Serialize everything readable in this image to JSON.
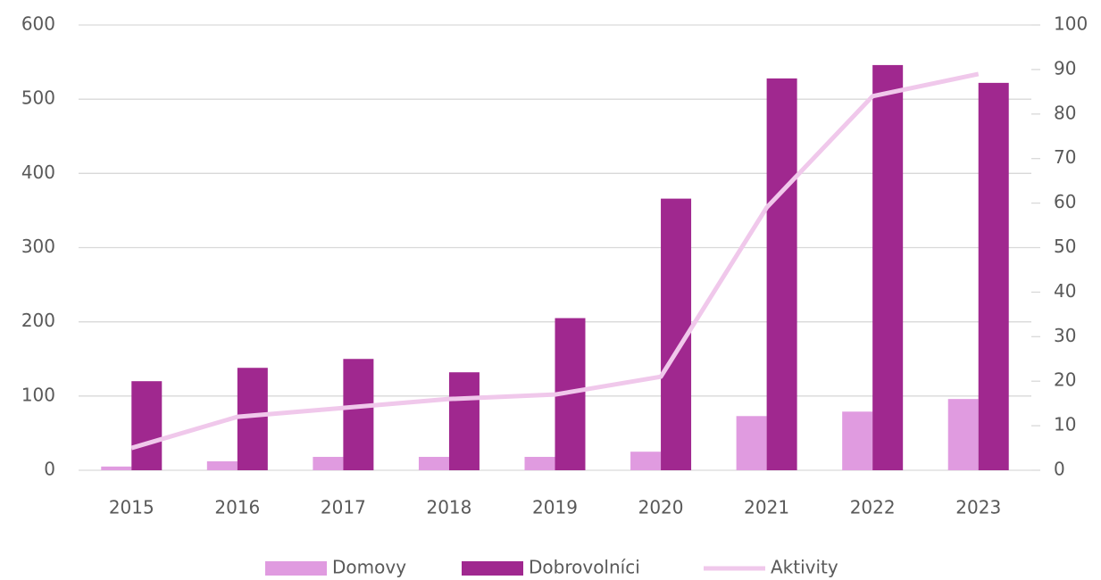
{
  "chart_data": {
    "type": "bar_line",
    "categories": [
      "2015",
      "2016",
      "2017",
      "2018",
      "2019",
      "2020",
      "2021",
      "2022",
      "2023"
    ],
    "series": [
      {
        "name": "Domovy",
        "type": "bar",
        "color": "#e09be0",
        "values": [
          5,
          12,
          18,
          18,
          18,
          25,
          73,
          79,
          96
        ]
      },
      {
        "name": "Dobrovolníci",
        "type": "bar",
        "color": "#a0288f",
        "values": [
          120,
          138,
          150,
          132,
          205,
          366,
          528,
          546,
          522
        ]
      },
      {
        "name": "Aktivity",
        "type": "line",
        "axis": "y2",
        "color": "#f0c8eb",
        "values": [
          5,
          12,
          14,
          16,
          17,
          21,
          59,
          84,
          89
        ]
      }
    ],
    "ylim": [
      0,
      600
    ],
    "yticks": [
      0,
      100,
      200,
      300,
      400,
      500,
      600
    ],
    "y2lim": [
      0,
      100
    ],
    "y2ticks": [
      0,
      10,
      20,
      30,
      40,
      50,
      60,
      70,
      80,
      90,
      100
    ],
    "grid": true,
    "legend": "bottom"
  }
}
